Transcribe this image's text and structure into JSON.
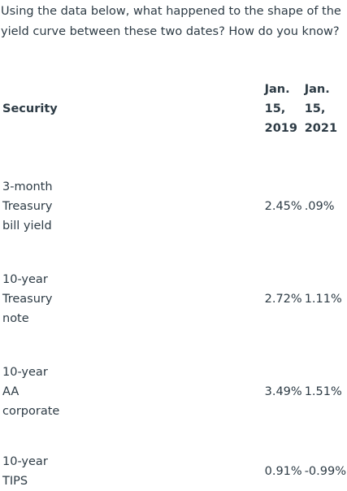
{
  "question": "Using the data below, what happened to the shape of the yield curve between these two dates?  How do you know?",
  "table": {
    "header": {
      "security": "Security",
      "date1": [
        "Jan.",
        "15,",
        "2019"
      ],
      "date2": [
        "Jan.",
        "15,",
        "2021"
      ]
    },
    "rows": [
      {
        "label": [
          "3-month",
          "Treasury",
          "bill yield"
        ],
        "v2019": "2.45%",
        "v2021": ".09%"
      },
      {
        "label": [
          "10-year",
          "Treasury",
          "note"
        ],
        "v2019": "2.72%",
        "v2021": "1.11%"
      },
      {
        "label": [
          "10-year",
          "AA",
          "corporate"
        ],
        "v2019": "3.49%",
        "v2021": "1.51%"
      },
      {
        "label": [
          "10-year",
          "TIPS"
        ],
        "v2019": "0.91%",
        "v2021": "-0.99%"
      }
    ]
  }
}
